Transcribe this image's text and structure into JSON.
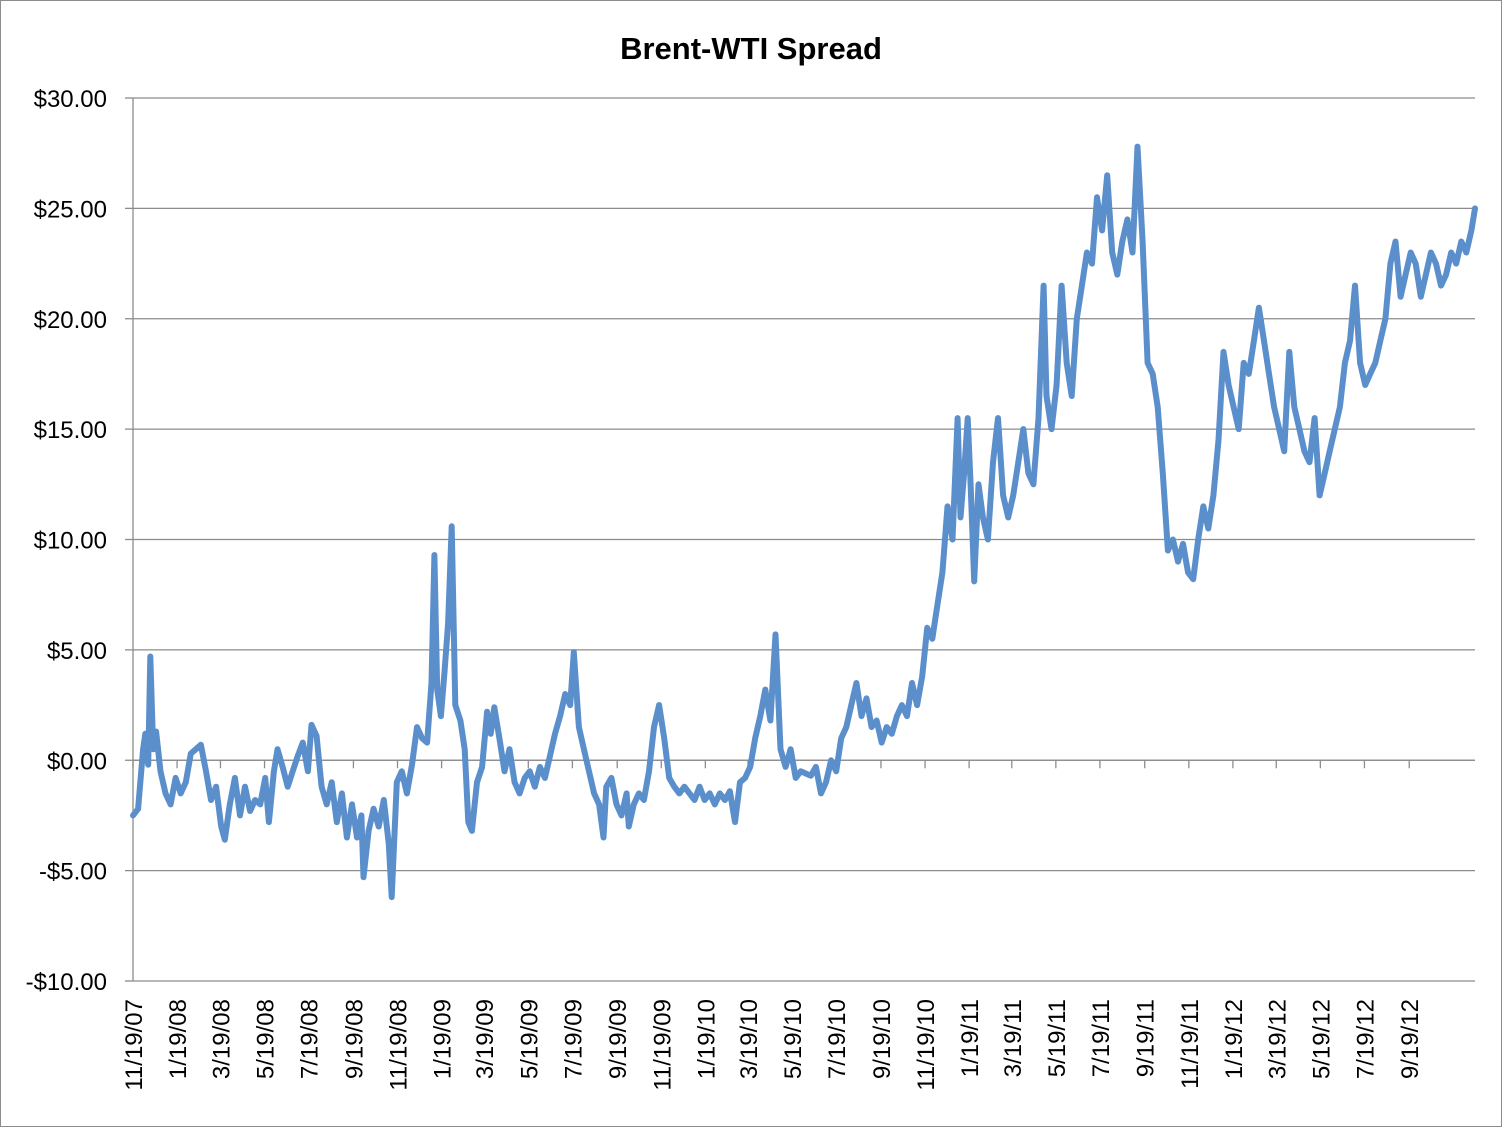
{
  "chart_data": {
    "type": "line",
    "title": "Brent-WTI Spread",
    "xlabel": "",
    "ylabel": "",
    "ylim": [
      -10,
      30
    ],
    "ytick_values": [
      30,
      25,
      20,
      15,
      10,
      5,
      0,
      -5,
      -10
    ],
    "ytick_labels": [
      "$30.00",
      "$25.00",
      "$20.00",
      "$15.00",
      "$10.00",
      "$5.00",
      "$0.00",
      "-$5.00",
      "-$10.00"
    ],
    "xlim": [
      "11/19/07",
      "12/19/12"
    ],
    "xtick_labels": [
      "11/19/07",
      "1/19/08",
      "3/19/08",
      "5/19/08",
      "7/19/08",
      "9/19/08",
      "11/19/08",
      "1/19/09",
      "3/19/09",
      "5/19/09",
      "7/19/09",
      "9/19/09",
      "11/19/09",
      "1/19/10",
      "3/19/10",
      "5/19/10",
      "7/19/10",
      "9/19/10",
      "11/19/10",
      "1/19/11",
      "3/19/11",
      "5/19/11",
      "7/19/11",
      "9/19/11",
      "11/19/11",
      "1/19/12",
      "3/19/12",
      "5/19/12",
      "7/19/12",
      "9/19/12"
    ],
    "grid": "horizontal",
    "legend": "none",
    "series": [
      {
        "color": "#5b8fcc",
        "values": [
          [
            "11/19/07",
            -2.5
          ],
          [
            "11/26/07",
            -2.2
          ],
          [
            "12/3/07",
            0.5
          ],
          [
            "12/6/07",
            1.2
          ],
          [
            "12/10/07",
            -0.2
          ],
          [
            "12/13/07",
            4.7
          ],
          [
            "12/17/07",
            0.5
          ],
          [
            "12/21/07",
            1.3
          ],
          [
            "12/27/07",
            -0.5
          ],
          [
            "1/3/08",
            -1.5
          ],
          [
            "1/10/08",
            -2.0
          ],
          [
            "1/17/08",
            -0.8
          ],
          [
            "1/24/08",
            -1.5
          ],
          [
            "1/31/08",
            -1.0
          ],
          [
            "2/7/08",
            0.3
          ],
          [
            "2/14/08",
            0.5
          ],
          [
            "2/21/08",
            0.7
          ],
          [
            "2/28/08",
            -0.5
          ],
          [
            "3/6/08",
            -1.8
          ],
          [
            "3/13/08",
            -1.2
          ],
          [
            "3/20/08",
            -3.0
          ],
          [
            "3/25/08",
            -3.6
          ],
          [
            "4/1/08",
            -2.0
          ],
          [
            "4/8/08",
            -0.8
          ],
          [
            "4/15/08",
            -2.5
          ],
          [
            "4/22/08",
            -1.2
          ],
          [
            "4/29/08",
            -2.3
          ],
          [
            "5/6/08",
            -1.8
          ],
          [
            "5/13/08",
            -2.0
          ],
          [
            "5/20/08",
            -0.8
          ],
          [
            "5/25/08",
            -2.8
          ],
          [
            "6/1/08",
            -0.5
          ],
          [
            "6/6/08",
            0.5
          ],
          [
            "6/13/08",
            -0.3
          ],
          [
            "6/20/08",
            -1.2
          ],
          [
            "6/27/08",
            -0.5
          ],
          [
            "7/4/08",
            0.2
          ],
          [
            "7/11/08",
            0.8
          ],
          [
            "7/18/08",
            -0.5
          ],
          [
            "7/23/08",
            1.6
          ],
          [
            "7/30/08",
            1.1
          ],
          [
            "8/6/08",
            -1.2
          ],
          [
            "8/13/08",
            -2.0
          ],
          [
            "8/20/08",
            -1.0
          ],
          [
            "8/27/08",
            -2.8
          ],
          [
            "9/3/08",
            -1.5
          ],
          [
            "9/10/08",
            -3.5
          ],
          [
            "9/17/08",
            -2.0
          ],
          [
            "9/24/08",
            -3.5
          ],
          [
            "9/30/08",
            -2.5
          ],
          [
            "10/3/08",
            -5.3
          ],
          [
            "10/10/08",
            -3.2
          ],
          [
            "10/17/08",
            -2.2
          ],
          [
            "10/24/08",
            -3.0
          ],
          [
            "10/31/08",
            -1.8
          ],
          [
            "11/7/08",
            -3.8
          ],
          [
            "11/11/08",
            -6.2
          ],
          [
            "11/18/08",
            -1.0
          ],
          [
            "11/25/08",
            -0.5
          ],
          [
            "12/2/08",
            -1.5
          ],
          [
            "12/9/08",
            -0.2
          ],
          [
            "12/16/08",
            1.5
          ],
          [
            "12/23/08",
            1.0
          ],
          [
            "12/30/08",
            0.8
          ],
          [
            "1/5/09",
            3.5
          ],
          [
            "1/9/09",
            9.3
          ],
          [
            "1/13/09",
            3.2
          ],
          [
            "1/18/09",
            2.0
          ],
          [
            "1/23/09",
            4.0
          ],
          [
            "1/28/09",
            6.2
          ],
          [
            "2/2/09",
            10.6
          ],
          [
            "2/7/09",
            2.5
          ],
          [
            "2/14/09",
            1.8
          ],
          [
            "2/20/09",
            0.5
          ],
          [
            "2/25/09",
            -2.8
          ],
          [
            "3/2/09",
            -3.2
          ],
          [
            "3/9/09",
            -1.0
          ],
          [
            "3/16/09",
            -0.3
          ],
          [
            "3/23/09",
            2.2
          ],
          [
            "3/28/09",
            1.2
          ],
          [
            "4/2/09",
            2.4
          ],
          [
            "4/9/09",
            1.0
          ],
          [
            "4/16/09",
            -0.5
          ],
          [
            "4/23/09",
            0.5
          ],
          [
            "4/30/09",
            -1.0
          ],
          [
            "5/7/09",
            -1.5
          ],
          [
            "5/14/09",
            -0.8
          ],
          [
            "5/21/09",
            -0.5
          ],
          [
            "5/28/09",
            -1.2
          ],
          [
            "6/4/09",
            -0.3
          ],
          [
            "6/11/09",
            -0.8
          ],
          [
            "6/18/09",
            0.2
          ],
          [
            "6/25/09",
            1.2
          ],
          [
            "7/2/09",
            2.0
          ],
          [
            "7/9/09",
            3.0
          ],
          [
            "7/16/09",
            2.5
          ],
          [
            "7/21/09",
            4.9
          ],
          [
            "7/28/09",
            1.5
          ],
          [
            "8/4/09",
            0.5
          ],
          [
            "8/11/09",
            -0.5
          ],
          [
            "8/18/09",
            -1.5
          ],
          [
            "8/25/09",
            -2.0
          ],
          [
            "8/31/09",
            -3.5
          ],
          [
            "9/4/09",
            -1.2
          ],
          [
            "9/11/09",
            -0.8
          ],
          [
            "9/18/09",
            -2.0
          ],
          [
            "9/25/09",
            -2.5
          ],
          [
            "10/2/09",
            -1.5
          ],
          [
            "10/5/09",
            -3.0
          ],
          [
            "10/12/09",
            -2.0
          ],
          [
            "10/19/09",
            -1.5
          ],
          [
            "10/26/09",
            -1.8
          ],
          [
            "11/2/09",
            -0.5
          ],
          [
            "11/9/09",
            1.5
          ],
          [
            "11/16/09",
            2.5
          ],
          [
            "11/23/09",
            1.0
          ],
          [
            "11/30/09",
            -0.8
          ],
          [
            "12/7/09",
            -1.2
          ],
          [
            "12/14/09",
            -1.5
          ],
          [
            "12/21/09",
            -1.2
          ],
          [
            "12/28/09",
            -1.5
          ],
          [
            "1/4/10",
            -1.8
          ],
          [
            "1/11/10",
            -1.2
          ],
          [
            "1/18/10",
            -1.8
          ],
          [
            "1/25/10",
            -1.5
          ],
          [
            "2/1/10",
            -2.0
          ],
          [
            "2/8/10",
            -1.5
          ],
          [
            "2/15/10",
            -1.8
          ],
          [
            "2/22/10",
            -1.4
          ],
          [
            "3/1/10",
            -2.8
          ],
          [
            "3/8/10",
            -1.0
          ],
          [
            "3/15/10",
            -0.8
          ],
          [
            "3/22/10",
            -0.3
          ],
          [
            "3/29/10",
            1.0
          ],
          [
            "4/5/10",
            2.0
          ],
          [
            "4/12/10",
            3.2
          ],
          [
            "4/19/10",
            1.8
          ],
          [
            "4/26/10",
            5.7
          ],
          [
            "5/3/10",
            0.5
          ],
          [
            "5/10/10",
            -0.3
          ],
          [
            "5/17/10",
            0.5
          ],
          [
            "5/24/10",
            -0.8
          ],
          [
            "5/31/10",
            -0.5
          ],
          [
            "6/7/10",
            -0.6
          ],
          [
            "6/14/10",
            -0.7
          ],
          [
            "6/21/10",
            -0.3
          ],
          [
            "6/28/10",
            -1.5
          ],
          [
            "7/5/10",
            -1.0
          ],
          [
            "7/12/10",
            0.0
          ],
          [
            "7/19/10",
            -0.5
          ],
          [
            "7/26/10",
            1.0
          ],
          [
            "8/2/10",
            1.5
          ],
          [
            "8/9/10",
            2.5
          ],
          [
            "8/16/10",
            3.5
          ],
          [
            "8/23/10",
            2.0
          ],
          [
            "8/30/10",
            2.8
          ],
          [
            "9/6/10",
            1.5
          ],
          [
            "9/13/10",
            1.8
          ],
          [
            "9/20/10",
            0.8
          ],
          [
            "9/27/10",
            1.5
          ],
          [
            "10/4/10",
            1.2
          ],
          [
            "10/11/10",
            2.0
          ],
          [
            "10/18/10",
            2.5
          ],
          [
            "10/25/10",
            2.0
          ],
          [
            "11/1/10",
            3.5
          ],
          [
            "11/8/10",
            2.5
          ],
          [
            "11/15/10",
            3.8
          ],
          [
            "11/22/10",
            6.0
          ],
          [
            "11/29/10",
            5.5
          ],
          [
            "12/6/10",
            7.0
          ],
          [
            "12/13/10",
            8.5
          ],
          [
            "12/20/10",
            11.5
          ],
          [
            "12/27/10",
            10.0
          ],
          [
            "1/3/11",
            15.5
          ],
          [
            "1/7/11",
            11.0
          ],
          [
            "1/12/11",
            13.0
          ],
          [
            "1/17/11",
            15.5
          ],
          [
            "1/21/11",
            12.5
          ],
          [
            "1/26/11",
            8.1
          ],
          [
            "2/1/11",
            12.5
          ],
          [
            "2/7/11",
            11.0
          ],
          [
            "2/14/11",
            10.0
          ],
          [
            "2/21/11",
            13.5
          ],
          [
            "2/28/11",
            15.5
          ],
          [
            "3/7/11",
            12.0
          ],
          [
            "3/14/11",
            11.0
          ],
          [
            "3/21/11",
            12.0
          ],
          [
            "3/28/11",
            13.5
          ],
          [
            "4/4/11",
            15.0
          ],
          [
            "4/11/11",
            13.0
          ],
          [
            "4/18/11",
            12.5
          ],
          [
            "4/25/11",
            15.5
          ],
          [
            "5/2/11",
            21.5
          ],
          [
            "5/6/11",
            16.5
          ],
          [
            "5/13/11",
            15.0
          ],
          [
            "5/20/11",
            17.0
          ],
          [
            "5/27/11",
            21.5
          ],
          [
            "6/3/11",
            18.0
          ],
          [
            "6/10/11",
            16.5
          ],
          [
            "6/17/11",
            20.0
          ],
          [
            "6/24/11",
            21.5
          ],
          [
            "7/1/11",
            23.0
          ],
          [
            "7/8/11",
            22.5
          ],
          [
            "7/15/11",
            25.5
          ],
          [
            "7/22/11",
            24.0
          ],
          [
            "7/29/11",
            26.5
          ],
          [
            "8/5/11",
            23.0
          ],
          [
            "8/12/11",
            22.0
          ],
          [
            "8/19/11",
            23.5
          ],
          [
            "8/26/11",
            24.5
          ],
          [
            "9/2/11",
            23.0
          ],
          [
            "9/9/11",
            27.8
          ],
          [
            "9/16/11",
            23.5
          ],
          [
            "9/23/11",
            18.0
          ],
          [
            "9/30/11",
            17.5
          ],
          [
            "10/7/11",
            16.0
          ],
          [
            "10/14/11",
            13.0
          ],
          [
            "10/21/11",
            9.5
          ],
          [
            "10/28/11",
            10.0
          ],
          [
            "11/4/11",
            9.0
          ],
          [
            "11/11/11",
            9.8
          ],
          [
            "11/18/11",
            8.5
          ],
          [
            "11/25/11",
            8.2
          ],
          [
            "12/2/11",
            10.0
          ],
          [
            "12/9/11",
            11.5
          ],
          [
            "12/16/11",
            10.5
          ],
          [
            "12/23/11",
            12.0
          ],
          [
            "12/30/11",
            14.5
          ],
          [
            "1/6/12",
            18.5
          ],
          [
            "1/13/12",
            17.0
          ],
          [
            "1/20/12",
            16.0
          ],
          [
            "1/27/12",
            15.0
          ],
          [
            "2/3/12",
            18.0
          ],
          [
            "2/10/12",
            17.5
          ],
          [
            "2/17/12",
            19.0
          ],
          [
            "2/24/12",
            20.5
          ],
          [
            "3/2/12",
            19.0
          ],
          [
            "3/9/12",
            17.5
          ],
          [
            "3/16/12",
            16.0
          ],
          [
            "3/23/12",
            15.0
          ],
          [
            "3/30/12",
            14.0
          ],
          [
            "4/6/12",
            18.5
          ],
          [
            "4/13/12",
            16.0
          ],
          [
            "4/20/12",
            15.0
          ],
          [
            "4/27/12",
            14.0
          ],
          [
            "5/4/12",
            13.5
          ],
          [
            "5/11/12",
            15.5
          ],
          [
            "5/18/12",
            12.0
          ],
          [
            "5/25/12",
            13.0
          ],
          [
            "6/1/12",
            14.0
          ],
          [
            "6/8/12",
            15.0
          ],
          [
            "6/15/12",
            16.0
          ],
          [
            "6/22/12",
            18.0
          ],
          [
            "6/29/12",
            19.0
          ],
          [
            "7/6/12",
            21.5
          ],
          [
            "7/13/12",
            18.0
          ],
          [
            "7/20/12",
            17.0
          ],
          [
            "7/27/12",
            17.5
          ],
          [
            "8/3/12",
            18.0
          ],
          [
            "8/10/12",
            19.0
          ],
          [
            "8/17/12",
            20.0
          ],
          [
            "8/24/12",
            22.5
          ],
          [
            "8/31/12",
            23.5
          ],
          [
            "9/7/12",
            21.0
          ],
          [
            "9/14/12",
            22.0
          ],
          [
            "9/21/12",
            23.0
          ],
          [
            "9/28/12",
            22.5
          ],
          [
            "10/5/12",
            21.0
          ],
          [
            "10/12/12",
            22.0
          ],
          [
            "10/19/12",
            23.0
          ],
          [
            "10/26/12",
            22.5
          ],
          [
            "11/2/12",
            21.5
          ],
          [
            "11/9/12",
            22.0
          ],
          [
            "11/16/12",
            23.0
          ],
          [
            "11/23/12",
            22.5
          ],
          [
            "11/30/12",
            23.5
          ],
          [
            "12/7/12",
            23.0
          ],
          [
            "12/14/12",
            24.0
          ],
          [
            "12/19/12",
            25.0
          ]
        ]
      }
    ]
  }
}
